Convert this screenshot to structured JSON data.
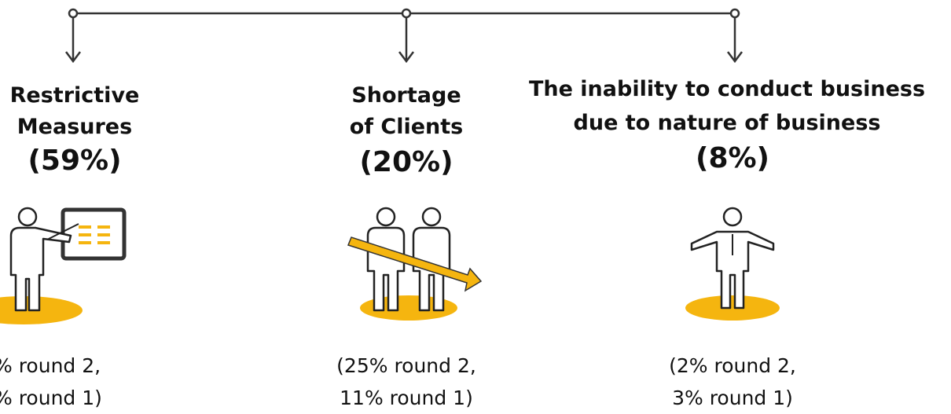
{
  "items": [
    {
      "title": [
        "Restrictive",
        "Measures"
      ],
      "share": "(59%)",
      "note": [
        "% round 2,",
        "% round 1)"
      ]
    },
    {
      "title": [
        "Shortage",
        "of Clients"
      ],
      "share": "(20%)",
      "note": [
        "(25% round 2,",
        "11% round 1)"
      ]
    },
    {
      "title": [
        "The inability to conduct business",
        "due to nature of business"
      ],
      "share": "(8%)",
      "note": [
        "(2% round 2,",
        "3% round 1)"
      ]
    }
  ]
}
